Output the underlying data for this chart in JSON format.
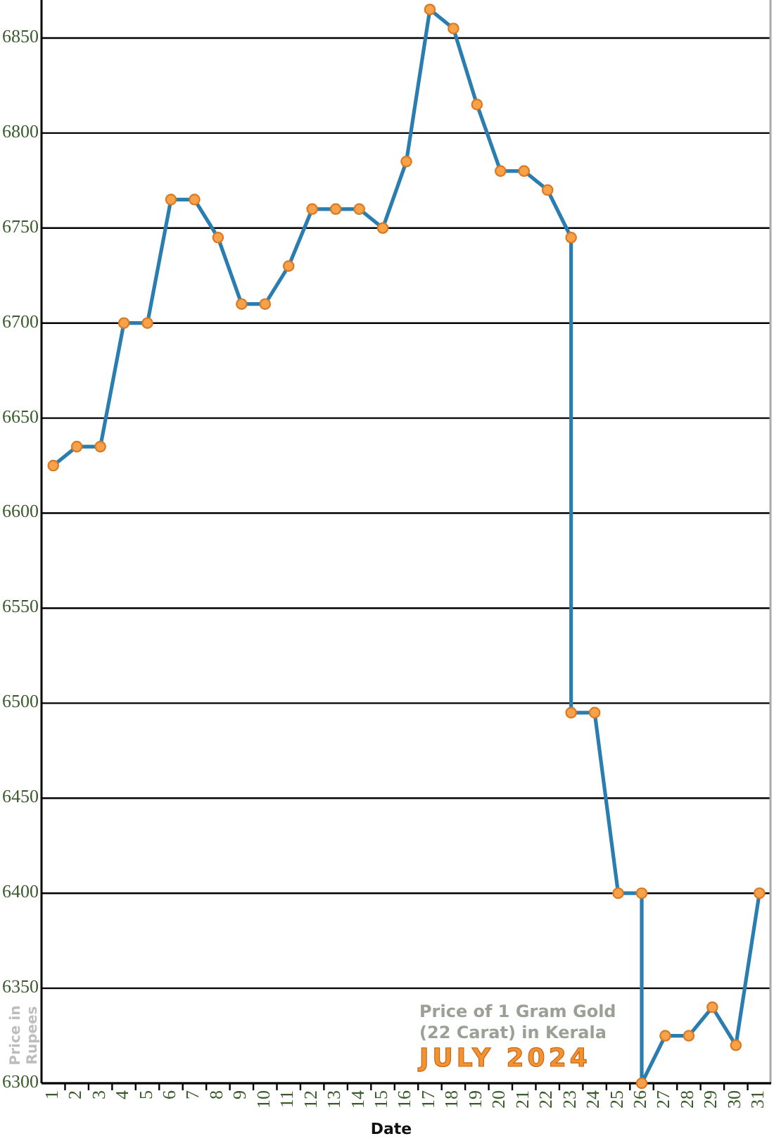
{
  "chart_data": {
    "type": "line",
    "xlabel": "Date",
    "ylabel": "Price in Rupees",
    "annotations": [
      "Price of 1 Gram Gold (22 Carat) in Kerala",
      "JULY 2024"
    ],
    "x": [
      1,
      2,
      3,
      4,
      5,
      6,
      7,
      8,
      9,
      10,
      11,
      12,
      13,
      14,
      15,
      16,
      17,
      18,
      19,
      20,
      21,
      22,
      23,
      23,
      24,
      25,
      26,
      26,
      27,
      28,
      29,
      30,
      31
    ],
    "series": [
      {
        "color": "#2a7db0",
        "values": [
          6625,
          6635,
          6635,
          6700,
          6700,
          6765,
          6765,
          6745,
          6710,
          6710,
          6730,
          6760,
          6760,
          6760,
          6750,
          6785,
          6865,
          6855,
          6815,
          6780,
          6780,
          6770,
          6745,
          6495,
          6495,
          6400,
          6400,
          6300,
          6325,
          6325,
          6340,
          6320,
          6400
        ]
      }
    ],
    "xlim": [
      0.5,
      31.5
    ],
    "xticks": [
      1,
      {
        "value": 1.5,
        "label": null
      },
      2,
      {
        "value": 2.5,
        "label": null
      },
      3,
      {
        "value": 3.5,
        "label": null
      },
      4,
      {
        "value": 4.5,
        "label": null
      },
      5,
      {
        "value": 5.5,
        "label": null
      },
      6,
      {
        "value": 6.5,
        "label": null
      },
      7,
      {
        "value": 7.5,
        "label": null
      },
      8,
      {
        "value": 8.5,
        "label": null
      },
      9,
      {
        "value": 9.5,
        "label": null
      },
      10,
      {
        "value": 10.5,
        "label": null
      },
      11,
      {
        "value": 11.5,
        "label": null
      },
      12,
      {
        "value": 12.5,
        "label": null
      },
      13,
      {
        "value": 13.5,
        "label": null
      },
      14,
      {
        "value": 14.5,
        "label": null
      },
      15,
      {
        "value": 15.5,
        "label": null
      },
      16,
      {
        "value": 16.5,
        "label": null
      },
      17,
      {
        "value": 17.5,
        "label": null
      },
      18,
      {
        "value": 18.5,
        "label": null
      },
      19,
      {
        "value": 19.5,
        "label": null
      },
      20,
      {
        "value": 20.5,
        "label": null
      },
      21,
      {
        "value": 21.5,
        "label": null
      },
      22,
      {
        "value": 22.5,
        "label": null
      },
      23,
      {
        "value": 23.5,
        "label": null
      },
      24,
      {
        "value": 24.5,
        "label": null
      },
      25,
      {
        "value": 25.5,
        "label": null
      },
      26,
      {
        "value": 26.5,
        "label": null
      },
      27,
      {
        "value": 27.5,
        "label": null
      },
      28,
      {
        "value": 28.5,
        "label": null
      },
      29,
      {
        "value": 29.5,
        "label": null
      },
      30,
      {
        "value": 30.5,
        "label": null
      },
      31
    ],
    "ylim": [
      6300,
      6870
    ],
    "yticks": [
      6300,
      6350,
      6400,
      6450,
      6500,
      6550,
      6600,
      6650,
      6700,
      6750,
      6800,
      6850
    ],
    "grid": "y",
    "marker": "circle",
    "line_style": "solid"
  }
}
